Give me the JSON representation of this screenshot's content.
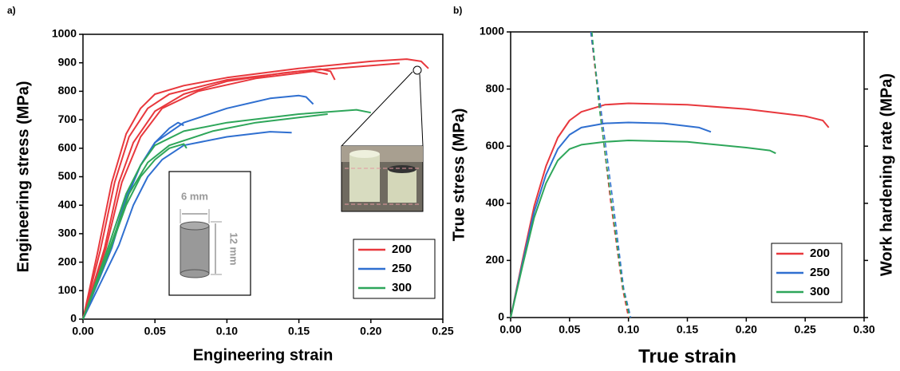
{
  "chart_data": [
    {
      "type": "line",
      "label": "a)",
      "xlabel": "Engineering strain",
      "ylabel": "Engineering stress (MPa)",
      "xlim": [
        0,
        0.25
      ],
      "ylim": [
        0,
        1000
      ],
      "xticks": [
        {
          "value": 0,
          "label": "0.00"
        },
        {
          "value": 0.05,
          "label": "0.05"
        },
        {
          "value": 0.1,
          "label": "0.10"
        },
        {
          "value": 0.15,
          "label": "0.15"
        },
        {
          "value": 0.2,
          "label": "0.20"
        },
        {
          "value": 0.25,
          "label": "0.25"
        }
      ],
      "yticks": [
        0,
        100,
        200,
        300,
        400,
        500,
        600,
        700,
        800,
        900,
        1000
      ],
      "legend": "lower right",
      "annotations": [
        "6 mm",
        "12 mm"
      ],
      "series": [
        {
          "name": "200",
          "color": "#e8383d",
          "curves": [
            {
              "x": [
                0,
                0.01,
                0.02,
                0.03,
                0.04,
                0.05,
                0.07,
                0.1,
                0.15,
                0.2,
                0.225,
                0.235,
                0.24
              ],
              "values": [
                0,
                230,
                480,
                650,
                740,
                790,
                820,
                848,
                880,
                905,
                913,
                905,
                880
              ]
            },
            {
              "x": [
                0,
                0.012,
                0.022,
                0.032,
                0.045,
                0.06,
                0.1,
                0.15,
                0.2,
                0.22
              ],
              "values": [
                0,
                240,
                480,
                640,
                740,
                790,
                840,
                870,
                890,
                898
              ]
            },
            {
              "x": [
                0,
                0.015,
                0.025,
                0.035,
                0.05,
                0.07,
                0.1,
                0.14,
                0.165,
                0.172,
                0.175
              ],
              "values": [
                0,
                250,
                480,
                620,
                730,
                790,
                835,
                865,
                878,
                870,
                840
              ]
            },
            {
              "x": [
                0,
                0.016,
                0.027,
                0.04,
                0.055,
                0.08,
                0.12,
                0.16,
                0.17
              ],
              "values": [
                0,
                250,
                480,
                640,
                740,
                800,
                845,
                870,
                860
              ]
            }
          ]
        },
        {
          "name": "250",
          "color": "#2f6fd0",
          "curves": [
            {
              "x": [
                0,
                0.02,
                0.03,
                0.04,
                0.05,
                0.07,
                0.1,
                0.13,
                0.15,
                0.155,
                0.16
              ],
              "values": [
                0,
                250,
                420,
                540,
                620,
                690,
                740,
                775,
                785,
                780,
                755
              ]
            },
            {
              "x": [
                0,
                0.02,
                0.03,
                0.04,
                0.05,
                0.06,
                0.066,
                0.07
              ],
              "values": [
                0,
                260,
                430,
                540,
                620,
                670,
                690,
                680
              ]
            },
            {
              "x": [
                0,
                0.025,
                0.035,
                0.045,
                0.055,
                0.07,
                0.1,
                0.13,
                0.145
              ],
              "values": [
                0,
                260,
                400,
                500,
                560,
                610,
                640,
                658,
                655
              ]
            }
          ]
        },
        {
          "name": "300",
          "color": "#2ea65a",
          "curves": [
            {
              "x": [
                0,
                0.018,
                0.03,
                0.04,
                0.05,
                0.07,
                0.1,
                0.15,
                0.19,
                0.2
              ],
              "values": [
                0,
                260,
                440,
                540,
                610,
                660,
                690,
                720,
                735,
                725
              ]
            },
            {
              "x": [
                0,
                0.02,
                0.032,
                0.045,
                0.06,
                0.09,
                0.12,
                0.17
              ],
              "values": [
                0,
                270,
                440,
                550,
                610,
                660,
                690,
                720
              ]
            },
            {
              "x": [
                0,
                0.02,
                0.03,
                0.04,
                0.05,
                0.06,
                0.07,
                0.072
              ],
              "values": [
                0,
                260,
                400,
                500,
                560,
                600,
                615,
                600
              ]
            }
          ]
        }
      ]
    },
    {
      "type": "line",
      "label": "b)",
      "xlabel": "True strain",
      "ylabel": "True stress (MPa)",
      "y2label": "Work hardening rate (MPa)",
      "xlim": [
        0,
        0.3
      ],
      "ylim": [
        0,
        1000
      ],
      "y2lim": [
        0,
        1000
      ],
      "xticks": [
        {
          "value": 0,
          "label": "0.00"
        },
        {
          "value": 0.05,
          "label": "0.05"
        },
        {
          "value": 0.1,
          "label": "0.10"
        },
        {
          "value": 0.15,
          "label": "0.15"
        },
        {
          "value": 0.2,
          "label": "0.20"
        },
        {
          "value": 0.25,
          "label": "0.25"
        },
        {
          "value": 0.3,
          "label": "0.30"
        }
      ],
      "yticks": [
        0,
        200,
        400,
        600,
        800,
        1000
      ],
      "legend": "lower right",
      "series": [
        {
          "name": "200",
          "color": "#e8383d",
          "x": [
            0,
            0.01,
            0.02,
            0.03,
            0.04,
            0.05,
            0.06,
            0.08,
            0.1,
            0.15,
            0.2,
            0.25,
            0.265,
            0.27
          ],
          "values": [
            0,
            200,
            390,
            530,
            630,
            690,
            720,
            745,
            750,
            745,
            730,
            705,
            690,
            665
          ]
        },
        {
          "name": "250",
          "color": "#2f6fd0",
          "x": [
            0,
            0.01,
            0.02,
            0.03,
            0.04,
            0.05,
            0.06,
            0.08,
            0.1,
            0.13,
            0.16,
            0.17
          ],
          "values": [
            0,
            190,
            370,
            500,
            590,
            640,
            665,
            680,
            683,
            680,
            665,
            650
          ]
        },
        {
          "name": "300",
          "color": "#2ea65a",
          "x": [
            0,
            0.01,
            0.02,
            0.03,
            0.04,
            0.05,
            0.06,
            0.08,
            0.1,
            0.15,
            0.2,
            0.22,
            0.225
          ],
          "values": [
            0,
            180,
            350,
            470,
            550,
            590,
            605,
            615,
            620,
            615,
            595,
            585,
            575
          ]
        },
        {
          "color": "#e8383d",
          "axis": "y2",
          "dashed": true,
          "x": [
            0.068,
            0.075,
            0.085,
            0.095,
            0.1
          ],
          "values": [
            1000,
            750,
            400,
            100,
            0
          ]
        },
        {
          "color": "#2f6fd0",
          "axis": "y2",
          "dashed": true,
          "x": [
            0.068,
            0.076,
            0.087,
            0.096,
            0.102
          ],
          "values": [
            1000,
            750,
            400,
            100,
            0
          ]
        },
        {
          "color": "#2ea65a",
          "axis": "y2",
          "dashed": true,
          "x": [
            0.069,
            0.075,
            0.086,
            0.095,
            0.101
          ],
          "values": [
            1000,
            740,
            390,
            110,
            0
          ]
        }
      ]
    }
  ]
}
